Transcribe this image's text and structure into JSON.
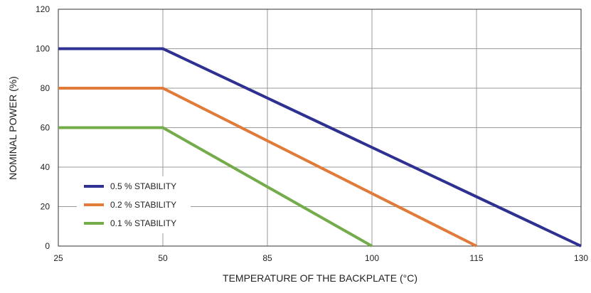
{
  "chart_data": {
    "type": "line",
    "title": "",
    "xlabel": "TEMPERATURE OF THE BACKPLATE (°C)",
    "ylabel": "NOMINAL POWER (%)",
    "x_ticks": [
      25,
      50,
      85,
      100,
      115,
      130
    ],
    "y_ticks": [
      0,
      20,
      40,
      60,
      80,
      100,
      120
    ],
    "ylim": [
      0,
      120
    ],
    "grid": true,
    "legend_position": "left",
    "series": [
      {
        "name": "0.5 % STABILITY",
        "color": "#2e3191",
        "x": [
          25,
          50,
          130
        ],
        "y": [
          100,
          100,
          0
        ]
      },
      {
        "name": "0.2 % STABILITY",
        "color": "#e07b39",
        "x": [
          25,
          50,
          115
        ],
        "y": [
          80,
          80,
          0
        ]
      },
      {
        "name": "0.1 % STABILITY",
        "color": "#74ac4c",
        "x": [
          25,
          50,
          100
        ],
        "y": [
          60,
          60,
          0
        ]
      }
    ]
  }
}
